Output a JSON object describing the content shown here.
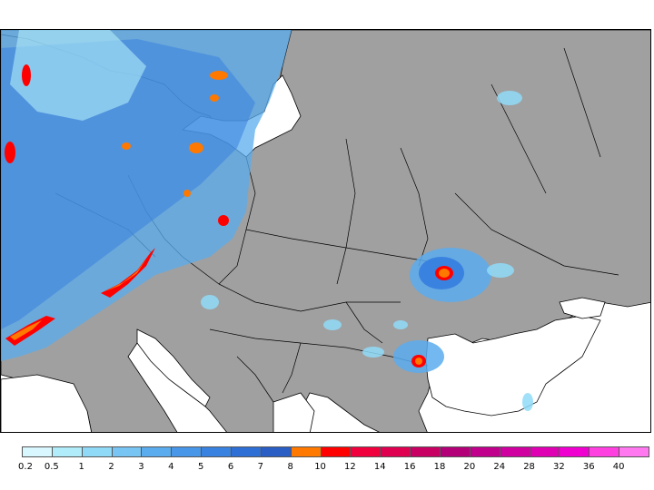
{
  "map": {
    "land_color": "#a0a0a0",
    "sea_color": "#ffffff",
    "border_color": "#000000"
  },
  "legend": {
    "colors": [
      "#d8f7ff",
      "#b0ecfa",
      "#90daf8",
      "#78c4f3",
      "#5aacee",
      "#4896e8",
      "#3a82e0",
      "#2e6fd6",
      "#2a5ec4",
      "#ff7800",
      "#ff0000",
      "#f0003c",
      "#e00050",
      "#c80064",
      "#b40078",
      "#c0008c",
      "#d000a0",
      "#e000b4",
      "#f000d0",
      "#ff40e0",
      "#ff78f0"
    ],
    "labels": [
      "0.2",
      "0.5",
      "1",
      "2",
      "3",
      "4",
      "5",
      "6",
      "7",
      "8",
      "10",
      "12",
      "14",
      "16",
      "18",
      "20",
      "24",
      "28",
      "32",
      "36",
      "40"
    ]
  }
}
